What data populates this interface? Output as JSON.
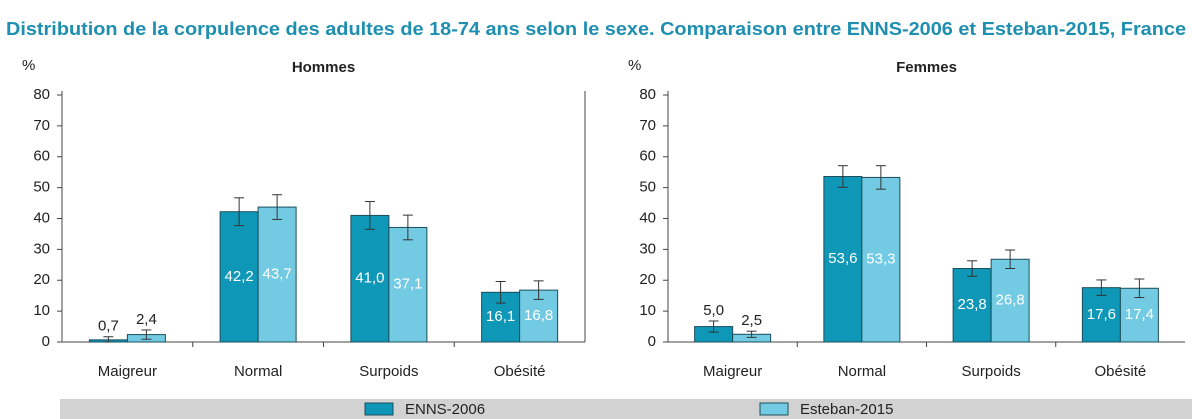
{
  "title": "Distribution de la corpulence des adultes de 18-74 ans selon le sexe. Comparaison entre ENNS-2006 et Esteban-2015, France",
  "chart_data": [
    {
      "type": "bar",
      "title": "Hommes",
      "ylabel": "%",
      "categories": [
        "Maigreur",
        "Normal",
        "Surpoids",
        "Obésité"
      ],
      "ylim": [
        0,
        80
      ],
      "yticks": [
        0,
        10,
        20,
        30,
        40,
        50,
        60,
        70,
        80
      ],
      "series": [
        {
          "name": "ENNS-2006",
          "color": "#0e97b7",
          "values": [
            0.7,
            42.2,
            41.0,
            16.1
          ],
          "errors": [
            1.0,
            4.5,
            4.5,
            3.5
          ],
          "value_labels": [
            "0,7",
            "42,2",
            "41,0",
            "16,1"
          ]
        },
        {
          "name": "Esteban-2015",
          "color": "#72cbe3",
          "values": [
            2.4,
            43.7,
            37.1,
            16.8
          ],
          "errors": [
            1.5,
            4.0,
            4.0,
            3.0
          ],
          "value_labels": [
            "2,4",
            "43,7",
            "37,1",
            "16,8"
          ]
        }
      ]
    },
    {
      "type": "bar",
      "title": "Femmes",
      "ylabel": "%",
      "categories": [
        "Maigreur",
        "Normal",
        "Surpoids",
        "Obésité"
      ],
      "ylim": [
        0,
        80
      ],
      "yticks": [
        0,
        10,
        20,
        30,
        40,
        50,
        60,
        70,
        80
      ],
      "series": [
        {
          "color": "#0e97b7",
          "values": [
            5.0,
            53.6,
            23.8,
            17.6
          ],
          "errors": [
            1.8,
            3.5,
            2.5,
            2.5
          ],
          "value_labels": [
            "5,0",
            "53,6",
            "23,8",
            "17,6"
          ]
        },
        {
          "color": "#72cbe3",
          "values": [
            2.5,
            53.3,
            26.8,
            17.4
          ],
          "errors": [
            1.0,
            3.8,
            3.0,
            3.0
          ],
          "value_labels": [
            "2,5",
            "53,3",
            "26,8",
            "17,4"
          ]
        }
      ]
    }
  ]
}
